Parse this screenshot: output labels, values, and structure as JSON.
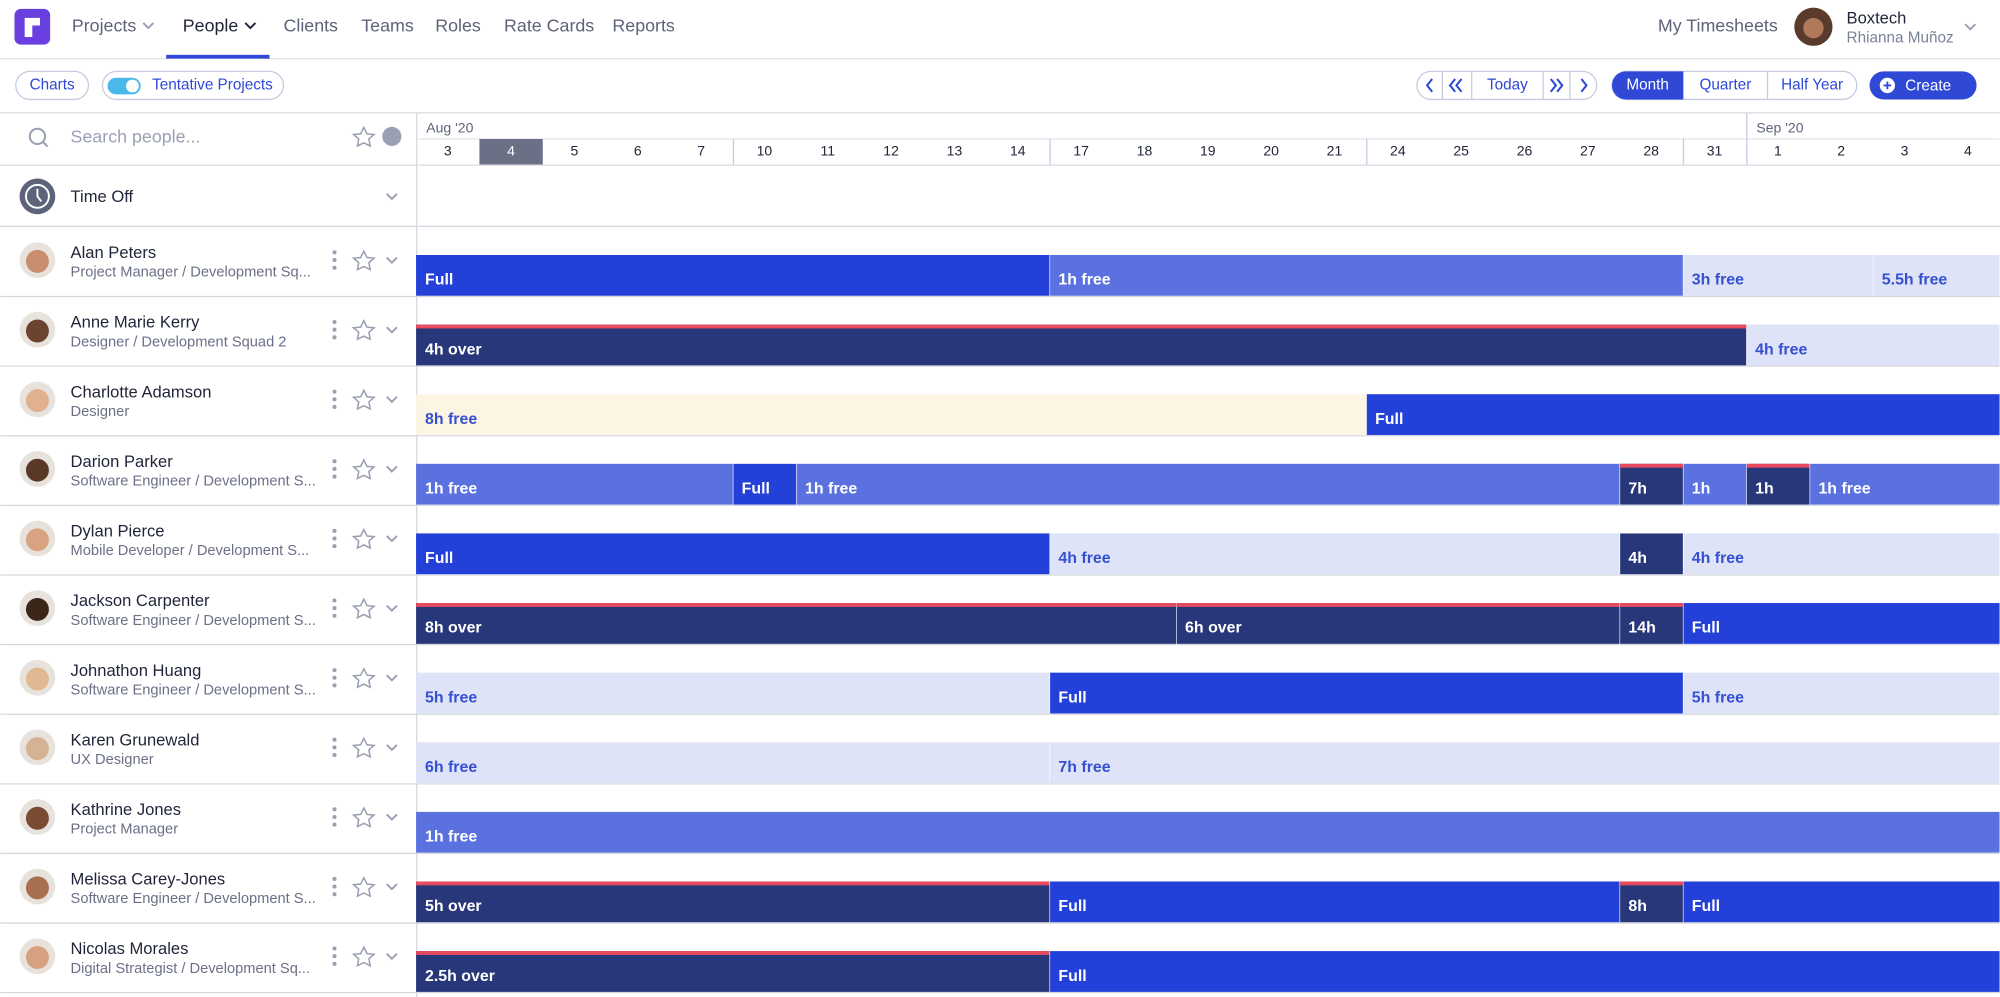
{
  "nav": [
    "Projects",
    "People",
    "Clients",
    "Teams",
    "Roles",
    "Rate Cards",
    "Reports"
  ],
  "user": {
    "link": "My Timesheets",
    "company": "Boxtech",
    "name": "Rhianna Muñoz"
  },
  "toolbar": {
    "charts": "Charts",
    "tentative": "Tentative Projects",
    "today": "Today",
    "ranges": [
      "Month",
      "Quarter",
      "Half Year"
    ],
    "create": "Create"
  },
  "search": {
    "placeholder": "Search people..."
  },
  "timeline": {
    "months": [
      "Aug '20",
      "Sep '20"
    ],
    "days": [
      "3",
      "4",
      "5",
      "6",
      "7",
      "10",
      "11",
      "12",
      "13",
      "14",
      "17",
      "18",
      "19",
      "20",
      "21",
      "24",
      "25",
      "26",
      "27",
      "28",
      "31",
      "1",
      "2",
      "3",
      "4"
    ]
  },
  "time_off": "Time Off",
  "people": [
    {
      "name": "Alan Peters",
      "role": "Project Manager / Development Sq...",
      "bars": [
        "Full",
        "1h free",
        "3h free",
        "5.5h free"
      ]
    },
    {
      "name": "Anne Marie Kerry",
      "role": "Designer / Development Squad 2",
      "bars": [
        "4h over",
        "4h free"
      ]
    },
    {
      "name": "Charlotte Adamson",
      "role": "Designer",
      "bars": [
        "8h free",
        "Full"
      ]
    },
    {
      "name": "Darion Parker",
      "role": "Software Engineer / Development S...",
      "bars": [
        "1h free",
        "Full",
        "1h free",
        "7h",
        "1h",
        "1h",
        "1h free"
      ]
    },
    {
      "name": "Dylan Pierce",
      "role": "Mobile Developer / Development S...",
      "bars": [
        "Full",
        "4h free",
        "4h",
        "4h free"
      ]
    },
    {
      "name": "Jackson Carpenter",
      "role": "Software Engineer / Development S...",
      "bars": [
        "8h over",
        "6h over",
        "14h",
        "Full"
      ]
    },
    {
      "name": "Johnathon Huang",
      "role": "Software Engineer / Development S...",
      "bars": [
        "5h free",
        "Full",
        "5h free"
      ]
    },
    {
      "name": "Karen Grunewald",
      "role": "UX Designer",
      "bars": [
        "6h free",
        "7h free"
      ]
    },
    {
      "name": "Kathrine Jones",
      "role": "Project Manager",
      "bars": [
        "1h free"
      ]
    },
    {
      "name": "Melissa Carey-Jones",
      "role": "Software Engineer / Development S...",
      "bars": [
        "5h over",
        "Full",
        "8h",
        "Full"
      ]
    },
    {
      "name": "Nicolas Morales",
      "role": "Digital Strategist / Development Sq...",
      "bars": [
        "2.5h over",
        "Full"
      ]
    }
  ]
}
